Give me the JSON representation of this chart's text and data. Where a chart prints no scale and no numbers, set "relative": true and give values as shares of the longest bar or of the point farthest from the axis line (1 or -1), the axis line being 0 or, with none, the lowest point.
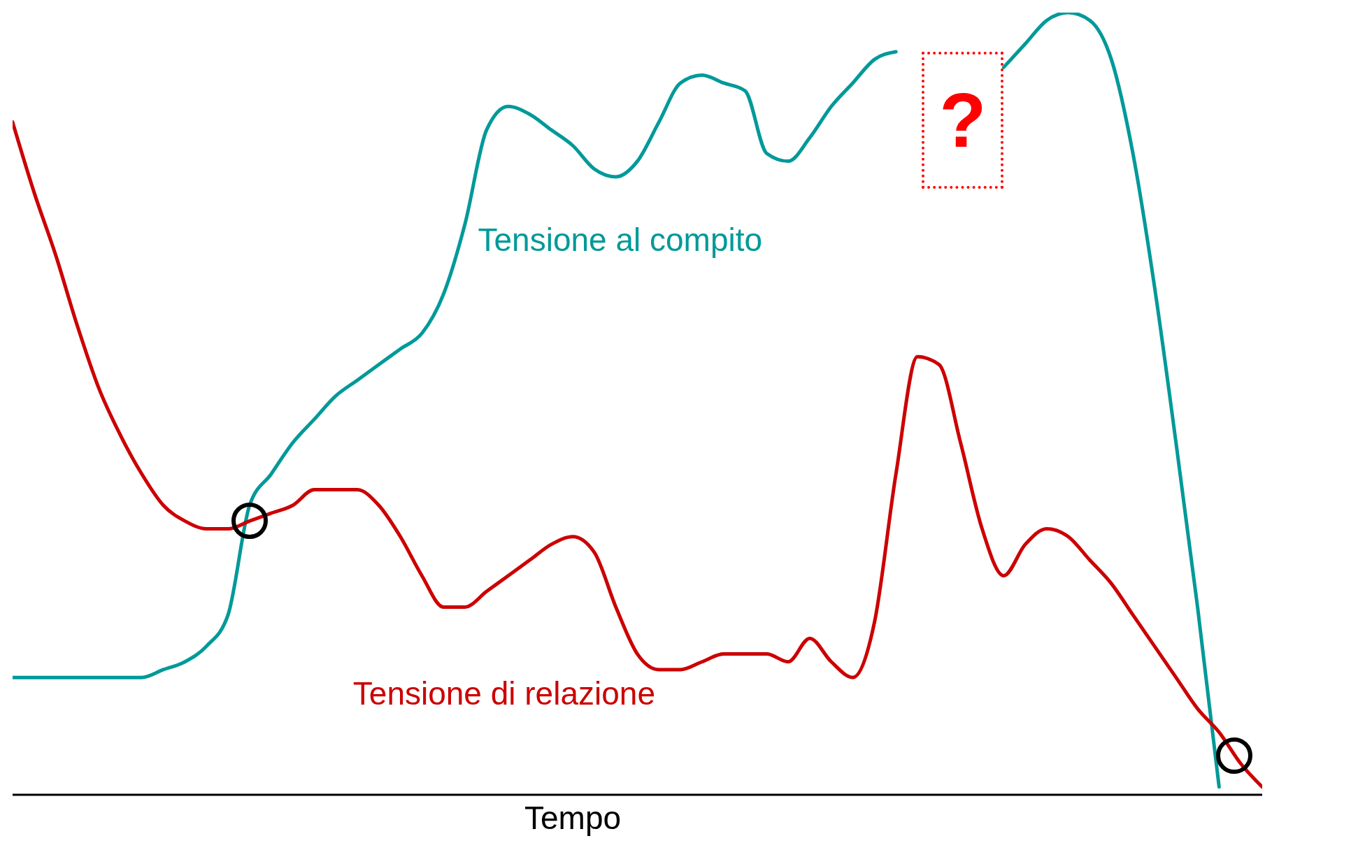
{
  "chart_data": {
    "type": "line",
    "relative": true,
    "xlabel": "Tempo",
    "categories": [
      null,
      null,
      null,
      null,
      null,
      null,
      null,
      null,
      null,
      null,
      null,
      null,
      null,
      null,
      null,
      null,
      null,
      null,
      null,
      null,
      null,
      null,
      null,
      null,
      null,
      null,
      null,
      null,
      null,
      null,
      null,
      null,
      null,
      null,
      null,
      null,
      null,
      null,
      null,
      null,
      null,
      null,
      null,
      null,
      null,
      null,
      null,
      null,
      null,
      null,
      null,
      null,
      null,
      null,
      null,
      null,
      null,
      null,
      null
    ],
    "series": [
      {
        "name": "Tensione al compito",
        "color": "#009999",
        "values": [
          0.15,
          0.15,
          0.15,
          0.15,
          0.15,
          0.15,
          0.15,
          0.16,
          0.17,
          0.19,
          0.23,
          0.37,
          0.41,
          0.45,
          0.48,
          0.51,
          0.53,
          0.55,
          0.57,
          0.59,
          0.64,
          0.73,
          0.85,
          0.88,
          0.87,
          0.85,
          0.83,
          0.8,
          0.79,
          0.81,
          0.86,
          0.91,
          0.92,
          0.91,
          0.9,
          0.82,
          0.81,
          0.84,
          0.88,
          0.91,
          0.94,
          0.95,
          null,
          null,
          null,
          null,
          0.93,
          0.96,
          0.99,
          1,
          0.99,
          0.94,
          0.82,
          0.65,
          0.45,
          0.24,
          0.01,
          null,
          null
        ]
      },
      {
        "name": "Tensione di relazione",
        "color": "#cc0000",
        "values": [
          0.86,
          0.77,
          0.69,
          0.6,
          0.52,
          0.46,
          0.41,
          0.37,
          0.35,
          0.34,
          0.34,
          0.35,
          0.36,
          0.37,
          0.39,
          0.39,
          0.39,
          0.37,
          0.33,
          0.28,
          0.24,
          0.24,
          0.26,
          0.28,
          0.3,
          0.32,
          0.33,
          0.31,
          0.24,
          0.18,
          0.16,
          0.16,
          0.17,
          0.18,
          0.18,
          0.18,
          0.17,
          0.2,
          0.17,
          0.15,
          0.22,
          0.41,
          0.56,
          0.55,
          0.45,
          0.34,
          0.28,
          0.32,
          0.34,
          0.33,
          0.3,
          0.27,
          0.23,
          0.19,
          0.15,
          0.11,
          0.08,
          0.04,
          0.01
        ]
      }
    ],
    "annotations": [
      "?"
    ]
  }
}
